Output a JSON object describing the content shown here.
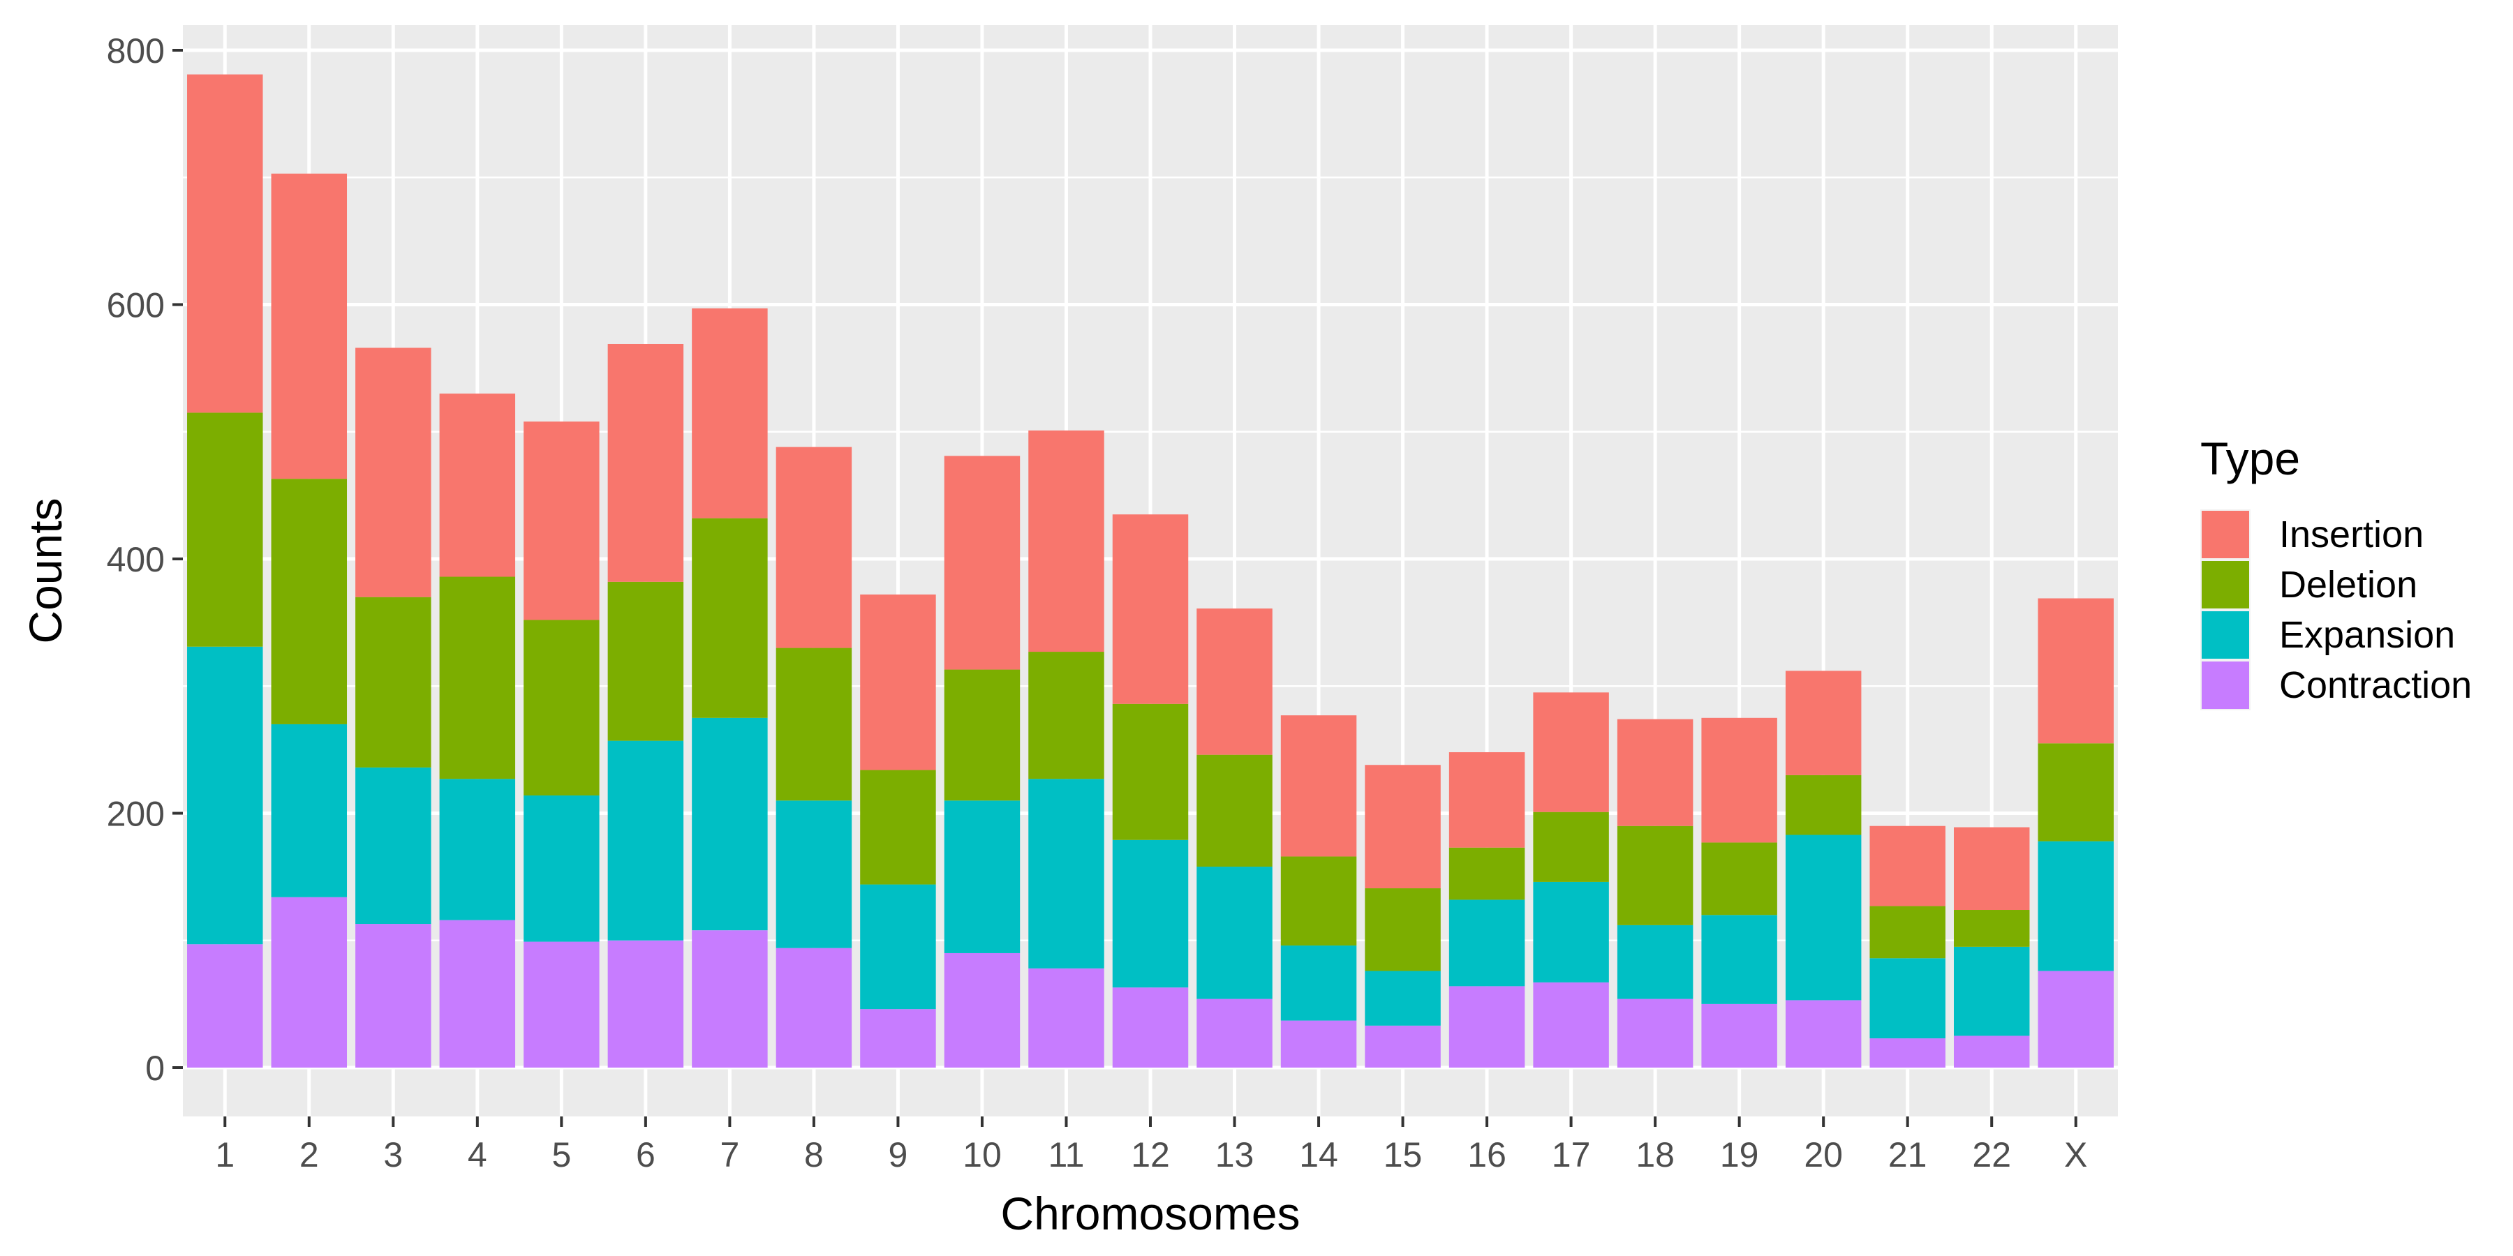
{
  "chart_data": {
    "type": "bar",
    "stacked": true,
    "xlabel": "Chromosomes",
    "ylabel": "Counts",
    "ylim": [
      0,
      820
    ],
    "yticks": [
      0,
      200,
      400,
      600,
      800
    ],
    "grid": true,
    "legend_position": "right",
    "categories": [
      "1",
      "2",
      "3",
      "4",
      "5",
      "6",
      "7",
      "8",
      "9",
      "10",
      "11",
      "12",
      "13",
      "14",
      "15",
      "16",
      "17",
      "18",
      "19",
      "20",
      "21",
      "22",
      "X"
    ],
    "legend": {
      "title": "Type"
    },
    "series": [
      {
        "name": "Contraction",
        "color": "#C77CFF",
        "values": [
          97,
          134,
          113,
          116,
          99,
          100,
          108,
          94,
          46,
          90,
          78,
          63,
          54,
          37,
          33,
          64,
          67,
          54,
          50,
          53,
          23,
          25,
          76
        ]
      },
      {
        "name": "Expansion",
        "color": "#00BFC4",
        "values": [
          234,
          136,
          123,
          111,
          115,
          157,
          167,
          116,
          98,
          120,
          149,
          116,
          104,
          59,
          43,
          68,
          79,
          58,
          70,
          130,
          63,
          70,
          102
        ]
      },
      {
        "name": "Deletion",
        "color": "#7CAE00",
        "values": [
          184,
          193,
          134,
          159,
          138,
          125,
          157,
          120,
          90,
          103,
          100,
          107,
          88,
          70,
          65,
          41,
          55,
          78,
          57,
          47,
          41,
          29,
          77
        ]
      },
      {
        "name": "Insertion",
        "color": "#F8766D",
        "values": [
          266,
          240,
          196,
          144,
          156,
          187,
          165,
          158,
          138,
          168,
          174,
          149,
          115,
          111,
          97,
          75,
          94,
          84,
          98,
          82,
          63,
          65,
          114
        ]
      }
    ],
    "legend_order": [
      "Insertion",
      "Deletion",
      "Expansion",
      "Contraction"
    ],
    "colors": {
      "panel_background": "#EBEBEB",
      "grid": "#FFFFFF",
      "axis_text": "#4D4D4D"
    }
  }
}
